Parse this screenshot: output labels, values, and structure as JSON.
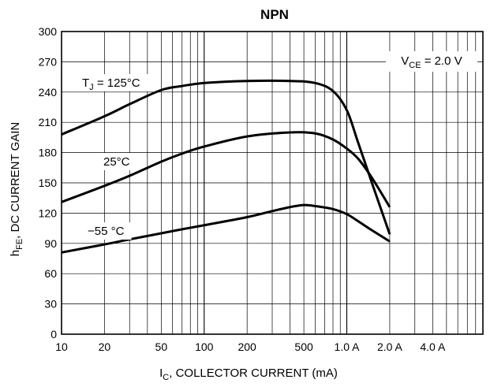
{
  "chart_data": {
    "type": "line",
    "title": "NPN",
    "xlabel": {
      "main": "I",
      "sub": "C",
      "rest": ", COLLECTOR CURRENT (mA)"
    },
    "ylabel": {
      "main": "h",
      "sub": "FE",
      "rest": ", DC CURRENT GAIN"
    },
    "x_scale": "log",
    "xlim": [
      10,
      9000
    ],
    "ylim": [
      0,
      300
    ],
    "x_ticks": [
      {
        "value": 10,
        "label": "10"
      },
      {
        "value": 20,
        "label": "20"
      },
      {
        "value": 50,
        "label": "50"
      },
      {
        "value": 100,
        "label": "100"
      },
      {
        "value": 200,
        "label": "200"
      },
      {
        "value": 500,
        "label": "500"
      },
      {
        "value": 1000,
        "label": "1.0 A"
      },
      {
        "value": 2000,
        "label": "2.0 A"
      },
      {
        "value": 4000,
        "label": "4.0 A"
      }
    ],
    "y_ticks": [
      0,
      30,
      60,
      90,
      120,
      150,
      180,
      210,
      240,
      270,
      300
    ],
    "grid": true,
    "annotations": [
      {
        "id": "vce",
        "main": "V",
        "sub": "CE",
        "rest": " = 2.0 V",
        "boxed": true
      },
      {
        "id": "tj125",
        "main": "T",
        "sub": "J",
        "rest": " = 125°C"
      },
      {
        "id": "t25",
        "main": "25°C",
        "sub": "",
        "rest": ""
      },
      {
        "id": "tm55",
        "main": "−55 °C",
        "sub": "",
        "rest": ""
      }
    ],
    "series": [
      {
        "label_ref": "tj125",
        "x": [
          10,
          20,
          30,
          50,
          70,
          100,
          200,
          400,
          600,
          800,
          1000,
          1200,
          1500,
          2000
        ],
        "y": [
          198,
          216,
          228,
          242,
          246,
          249,
          251,
          251,
          249,
          241,
          222,
          190,
          150,
          99
        ]
      },
      {
        "label_ref": "t25",
        "x": [
          10,
          20,
          30,
          50,
          70,
          100,
          200,
          400,
          600,
          800,
          1000,
          1200,
          1500,
          2000
        ],
        "y": [
          131,
          147,
          157,
          171,
          179,
          186,
          196,
          200,
          199,
          193,
          184,
          174,
          155,
          126
        ]
      },
      {
        "label_ref": "tm55",
        "x": [
          10,
          20,
          30,
          50,
          70,
          100,
          200,
          300,
          400,
          500,
          600,
          800,
          1000,
          1200,
          1500,
          2000
        ],
        "y": [
          81,
          89,
          94,
          100,
          104,
          108,
          116,
          122,
          126,
          128,
          127,
          124,
          119,
          112,
          103,
          92
        ]
      }
    ]
  }
}
